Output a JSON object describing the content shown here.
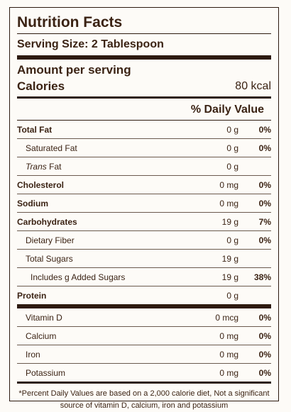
{
  "label": {
    "title": "Nutrition Facts",
    "serving_size": "Serving Size: 2 Tablespoon",
    "amount_per_serving": "Amount per serving",
    "calories_label": "Calories",
    "calories_value": "80 kcal",
    "daily_value_header": "% Daily Value",
    "nutrients": [
      {
        "name": "Total Fat",
        "amount": "0 g",
        "dv": "0%"
      },
      {
        "name": "Saturated Fat",
        "amount": "0 g",
        "dv": "0%"
      },
      {
        "name_italic": "Trans",
        "name_rest": " Fat",
        "amount": "0 g",
        "dv": ""
      },
      {
        "name": "Cholesterol",
        "amount": "0 mg",
        "dv": "0%"
      },
      {
        "name": "Sodium",
        "amount": "0 mg",
        "dv": "0%"
      },
      {
        "name": "Carbohydrates",
        "amount": "19 g",
        "dv": "7%"
      },
      {
        "name": "Dietary Fiber",
        "amount": "0 g",
        "dv": "0%"
      },
      {
        "name": "Total Sugars",
        "amount": "19 g",
        "dv": ""
      },
      {
        "name": "Includes g Added Sugars",
        "amount": "19 g",
        "dv": "38%"
      },
      {
        "name": "Protein",
        "amount": "0 g",
        "dv": ""
      }
    ],
    "vitamins": [
      {
        "name": "Vitamin D",
        "amount": "0 mcg",
        "dv": "0%"
      },
      {
        "name": "Calcium",
        "amount": "0 mg",
        "dv": "0%"
      },
      {
        "name": "Iron",
        "amount": "0 mg",
        "dv": "0%"
      },
      {
        "name": "Potassium",
        "amount": "0 mg",
        "dv": "0%"
      }
    ],
    "footnote": "*Percent Daily Values are based on a 2,000 calorie diet, Not a significant source of vitamin D, calcium, iron and potassium"
  }
}
